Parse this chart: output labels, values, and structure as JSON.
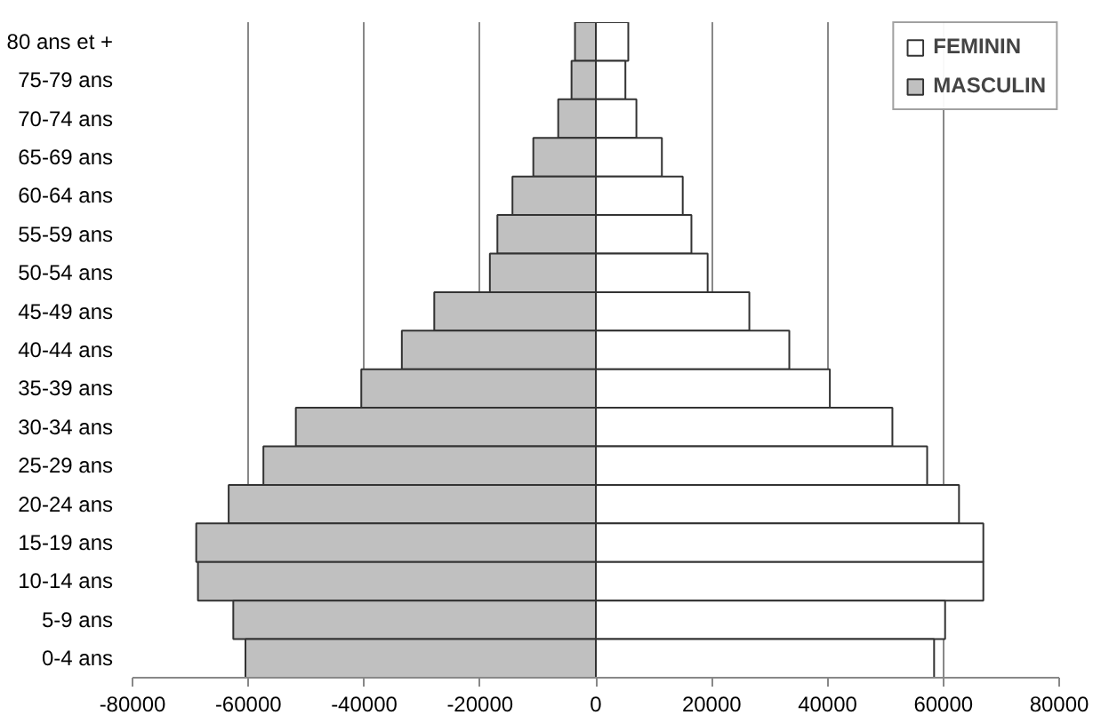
{
  "chart_data": {
    "type": "bar",
    "orientation": "horizontal",
    "categories": [
      "80 ans et +",
      "75-79 ans",
      "70-74 ans",
      "65-69 ans",
      "60-64 ans",
      "55-59 ans",
      "50-54 ans",
      "45-49 ans",
      "40-44 ans",
      "35-39 ans",
      "30-34 ans",
      "25-29 ans",
      "20-24 ans",
      "15-19 ans",
      "10-14 ans",
      "5-9 ans",
      "0-4 ans"
    ],
    "series": [
      {
        "name": "FEMININ",
        "color": "#ffffff",
        "values": [
          5600,
          5100,
          7000,
          11400,
          15000,
          16500,
          19300,
          26500,
          33400,
          40400,
          51200,
          57200,
          62700,
          66900,
          66900,
          60300,
          58400
        ]
      },
      {
        "name": "MASCULIN",
        "color": "#c0c0c0",
        "values": [
          -3600,
          -4200,
          -6500,
          -10800,
          -14400,
          -17000,
          -18300,
          -27900,
          -33500,
          -40500,
          -51800,
          -57400,
          -63400,
          -69000,
          -68700,
          -62600,
          -60500
        ]
      }
    ],
    "xlim": [
      -80000,
      80000
    ],
    "xticks": [
      -80000,
      -60000,
      -40000,
      -20000,
      0,
      20000,
      40000,
      60000,
      80000
    ],
    "stacked": true,
    "grid": "x",
    "legend": "top right"
  }
}
